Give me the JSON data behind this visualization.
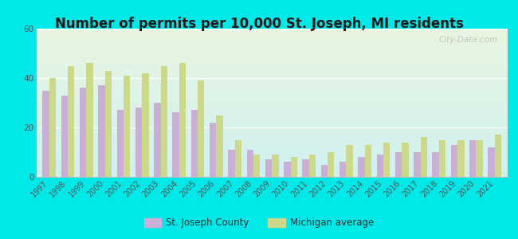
{
  "title": "Number of permits per 10,000 St. Joseph, MI residents",
  "years": [
    1997,
    1998,
    1999,
    2000,
    2001,
    2002,
    2003,
    2004,
    2005,
    2006,
    2007,
    2008,
    2009,
    2010,
    2011,
    2012,
    2013,
    2014,
    2015,
    2016,
    2017,
    2018,
    2019,
    2020,
    2021
  ],
  "st_joseph": [
    35,
    33,
    36,
    37,
    27,
    28,
    30,
    26,
    27,
    22,
    11,
    11,
    7,
    6,
    7,
    5,
    6,
    8,
    9,
    10,
    10,
    10,
    13,
    15,
    12
  ],
  "michigan": [
    40,
    45,
    46,
    43,
    41,
    42,
    45,
    46,
    39,
    25,
    15,
    9,
    9,
    8,
    9,
    10,
    13,
    13,
    14,
    14,
    16,
    15,
    15,
    15,
    17
  ],
  "bar_color_sj": "#c9aed6",
  "bar_color_mi": "#cdd98a",
  "bg_outer": "#00e8e8",
  "ylim": [
    0,
    60
  ],
  "yticks": [
    0,
    20,
    40,
    60
  ],
  "legend_sj": "St. Joseph County",
  "legend_mi": "Michigan average",
  "title_fontsize": 12,
  "tick_fontsize": 7
}
